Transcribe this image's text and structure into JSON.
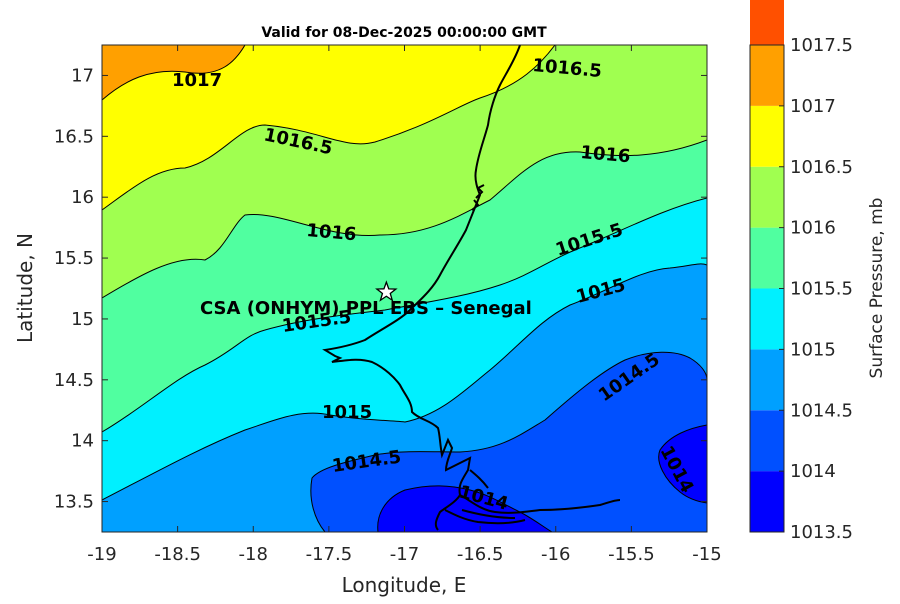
{
  "title": "Valid for 08-Dec-2025 00:00:00 GMT",
  "xlabel": "Longitude, E",
  "ylabel": "Latitude, N",
  "xticks": [
    "-19",
    "-18.5",
    "-18",
    "-17.5",
    "-17",
    "-16.5",
    "-16",
    "-15.5",
    "-15"
  ],
  "yticks": [
    "13.5",
    "14",
    "14.5",
    "15",
    "15.5",
    "16",
    "16.5",
    "17"
  ],
  "site": {
    "label": "CSA (ONHYM) PPL EBS  – Senegal",
    "lon": -17.12,
    "lat": 15.22
  },
  "contour_labels": [
    "1017",
    "1016.5",
    "1016.5",
    "1016",
    "1016",
    "1015.5",
    "1015.5",
    "1015",
    "1015",
    "1014.5",
    "1014.5",
    "1014",
    "1014"
  ],
  "colorbar": {
    "label": "Surface Pressure, mb",
    "levels": [
      "1013.5",
      "1014",
      "1014.5",
      "1015",
      "1015.5",
      "1016",
      "1016.5",
      "1017",
      "1017.5"
    ],
    "colors": [
      "#0000ff",
      "#0050ff",
      "#00a0ff",
      "#00f0ff",
      "#50ffa0",
      "#a0ff50",
      "#ffff00",
      "#ffa000",
      "#ff5000"
    ]
  },
  "chart_data": {
    "type": "contour-map",
    "title": "Valid for 08-Dec-2025 00:00:00 GMT",
    "xlabel": "Longitude, E",
    "ylabel": "Latitude, N",
    "xlim": [
      -19,
      -15
    ],
    "ylim": [
      13.25,
      17.25
    ],
    "contour_levels": [
      1014,
      1014.5,
      1015,
      1015.5,
      1016,
      1016.5,
      1017
    ],
    "colorbar_range": [
      1013.5,
      1017.5
    ],
    "units": "mb",
    "gradient": "pressure decreases from northwest (~1017 mb) to southeast (~1014 mb)",
    "marker": {
      "name": "CSA (ONHYM) PPL EBS  – Senegal",
      "lon": -17.12,
      "lat": 15.22
    }
  }
}
